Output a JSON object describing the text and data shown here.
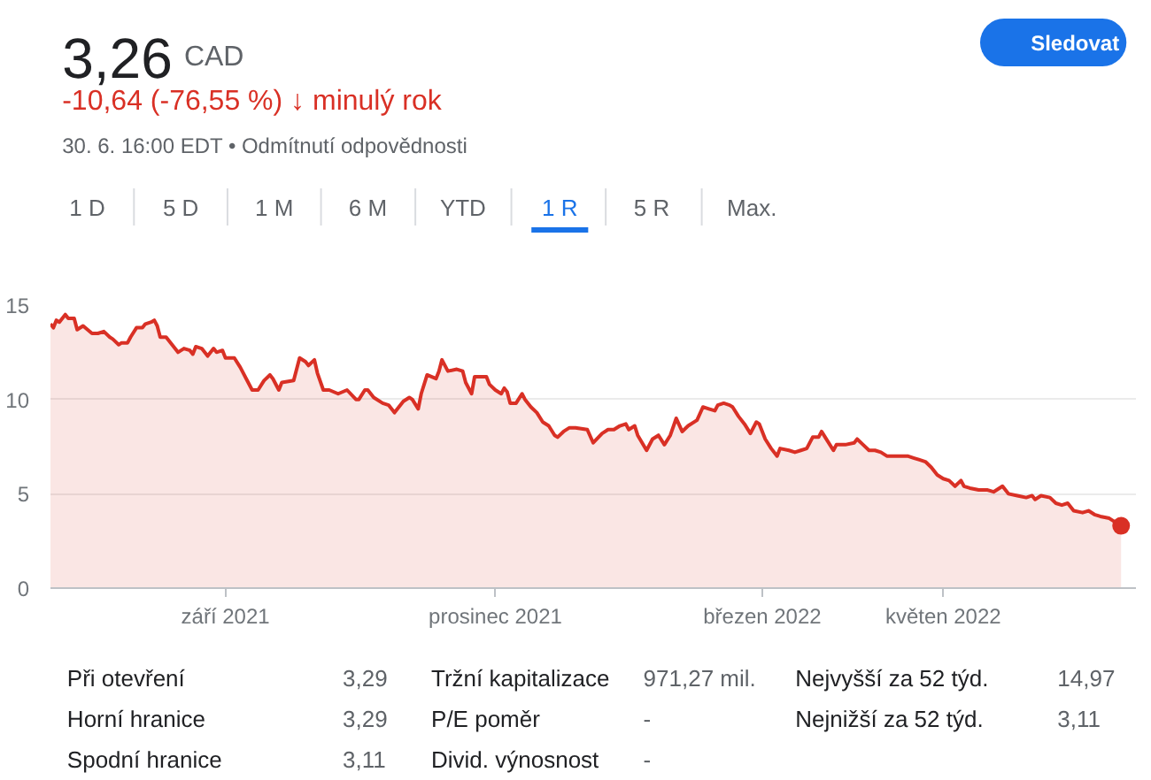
{
  "chart_data": {
    "type": "area",
    "title": "3,26",
    "subtitle": "-10,64 (-76,55 %) ↓ minulý rok",
    "annotations": [
      "CAD",
      "30. 6. 16:00 EDT • Odmítnutí odpovědnosti",
      "Sledovat",
      "1 D",
      "5 D",
      "1 M",
      "6 M",
      "YTD",
      "1 R",
      "5 R",
      "Max.",
      "Při otevření",
      "3,29",
      "Tržní kapitalizace",
      "971,27 mil.",
      "Nejvyšší za 52 týd.",
      "14,97",
      "Horní hranice",
      "3,29",
      "P/E poměr",
      "-",
      "Nejnižší za 52 týd.",
      "3,11",
      "Spodní hranice",
      "3,11",
      "Divid. výnosnost",
      "-"
    ],
    "x": [
      "2021-07-04",
      "2021-07-05",
      "2021-07-06",
      "2021-07-07",
      "2021-07-09",
      "2021-07-10",
      "2021-07-12",
      "2021-07-13",
      "2021-07-15",
      "2021-07-18",
      "2021-07-20",
      "2021-07-22",
      "2021-07-24",
      "2021-07-25",
      "2021-07-27",
      "2021-07-28",
      "2021-07-30",
      "2021-07-31",
      "2021-08-02",
      "2021-08-04",
      "2021-08-05",
      "2021-08-07",
      "2021-08-08",
      "2021-08-09",
      "2021-08-10",
      "2021-08-12",
      "2021-08-14",
      "2021-08-16",
      "2021-08-18",
      "2021-08-20",
      "2021-08-21",
      "2021-08-22",
      "2021-08-24",
      "2021-08-26",
      "2021-08-28",
      "2021-08-29",
      "2021-08-31",
      "2021-09-01",
      "2021-09-04",
      "2021-09-06",
      "2021-09-08",
      "2021-09-10",
      "2021-09-12",
      "2021-09-14",
      "2021-09-16",
      "2021-09-17",
      "2021-09-19",
      "2021-09-20",
      "2021-09-24",
      "2021-09-26",
      "2021-09-28",
      "2021-09-29",
      "2021-10-01",
      "2021-10-02",
      "2021-10-04",
      "2021-10-06",
      "2021-10-09",
      "2021-10-12",
      "2021-10-15",
      "2021-10-16",
      "2021-10-18",
      "2021-10-19",
      "2021-10-21",
      "2021-10-24",
      "2021-10-26",
      "2021-10-28",
      "2021-10-30",
      "2021-10-31",
      "2021-11-02",
      "2021-11-03",
      "2021-11-05",
      "2021-11-06",
      "2021-11-08",
      "2021-11-11",
      "2021-11-12",
      "2021-11-13",
      "2021-11-15",
      "2021-11-18",
      "2021-11-20",
      "2021-11-21",
      "2021-11-23",
      "2021-11-24",
      "2021-11-28",
      "2021-11-29",
      "2021-12-01",
      "2021-12-03",
      "2021-12-04",
      "2021-12-05",
      "2021-12-06",
      "2021-12-08",
      "2021-12-10",
      "2021-12-11",
      "2021-12-13",
      "2021-12-15",
      "2021-12-17",
      "2021-12-19",
      "2021-12-21",
      "2021-12-22",
      "2021-12-24",
      "2021-12-26",
      "2021-12-28",
      "2022-01-01",
      "2022-01-03",
      "2022-01-06",
      "2022-01-08",
      "2022-01-10",
      "2022-01-12",
      "2022-01-14",
      "2022-01-15",
      "2022-01-17",
      "2022-01-18",
      "2022-01-21",
      "2022-01-23",
      "2022-01-25",
      "2022-01-27",
      "2022-01-29",
      "2022-01-31",
      "2022-02-02",
      "2022-02-04",
      "2022-02-07",
      "2022-02-09",
      "2022-02-11",
      "2022-02-13",
      "2022-02-14",
      "2022-02-16",
      "2022-02-18",
      "2022-02-19",
      "2022-02-21",
      "2022-02-23",
      "2022-02-25",
      "2022-02-27",
      "2022-02-28",
      "2022-03-02",
      "2022-03-04",
      "2022-03-06",
      "2022-03-07",
      "2022-03-10",
      "2022-03-12",
      "2022-03-14",
      "2022-03-16",
      "2022-03-18",
      "2022-03-20",
      "2022-03-21",
      "2022-03-23",
      "2022-03-25",
      "2022-03-26",
      "2022-03-29",
      "2022-04-01",
      "2022-04-02",
      "2022-04-04",
      "2022-04-06",
      "2022-04-08",
      "2022-04-10",
      "2022-04-12",
      "2022-04-14",
      "2022-04-17",
      "2022-04-19",
      "2022-04-21",
      "2022-04-23",
      "2022-04-25",
      "2022-04-27",
      "2022-04-29",
      "2022-05-01",
      "2022-05-03",
      "2022-05-05",
      "2022-05-07",
      "2022-05-08",
      "2022-05-10",
      "2022-05-13",
      "2022-05-16",
      "2022-05-18",
      "2022-05-21",
      "2022-05-23",
      "2022-05-26",
      "2022-05-29",
      "2022-05-31",
      "2022-06-01",
      "2022-06-03",
      "2022-06-06",
      "2022-06-08",
      "2022-06-10",
      "2022-06-12",
      "2022-06-14",
      "2022-06-17",
      "2022-06-19",
      "2022-06-21",
      "2022-06-23",
      "2022-06-26",
      "2022-06-28",
      "2022-06-30"
    ],
    "series": [
      {
        "color": "#d93025",
        "values": [
          14.0,
          13.8,
          14.2,
          14.1,
          14.5,
          14.3,
          14.3,
          13.7,
          13.9,
          13.5,
          13.5,
          13.6,
          13.3,
          13.2,
          12.9,
          13.0,
          13.0,
          13.3,
          13.8,
          13.8,
          14.0,
          14.1,
          14.2,
          13.9,
          13.3,
          13.3,
          12.9,
          12.5,
          12.7,
          12.6,
          12.4,
          12.8,
          12.7,
          12.3,
          12.7,
          12.5,
          12.6,
          12.2,
          12.2,
          11.7,
          11.1,
          10.5,
          10.5,
          11.0,
          11.3,
          11.1,
          10.5,
          10.9,
          11.0,
          12.2,
          12.0,
          11.8,
          12.1,
          11.4,
          10.5,
          10.5,
          10.3,
          10.5,
          10.0,
          10.0,
          10.5,
          10.5,
          10.1,
          9.8,
          9.7,
          9.3,
          9.7,
          9.9,
          10.1,
          10.0,
          9.5,
          10.3,
          11.3,
          11.1,
          11.5,
          12.1,
          11.5,
          11.6,
          11.5,
          10.9,
          10.3,
          11.2,
          11.2,
          10.8,
          10.5,
          10.3,
          10.6,
          10.4,
          9.8,
          9.8,
          10.3,
          10.0,
          9.6,
          9.3,
          8.8,
          8.6,
          8.1,
          8.0,
          8.3,
          8.5,
          8.5,
          8.4,
          7.7,
          8.2,
          8.4,
          8.4,
          8.6,
          8.7,
          8.4,
          8.6,
          8.1,
          7.3,
          7.9,
          8.1,
          7.6,
          8.1,
          9.0,
          8.3,
          8.6,
          8.9,
          9.6,
          9.5,
          9.4,
          9.7,
          9.8,
          9.7,
          9.6,
          9.1,
          8.7,
          8.2,
          8.8,
          8.7,
          7.9,
          7.4,
          7.0,
          7.4,
          7.3,
          7.2,
          7.3,
          7.4,
          8.0,
          8.0,
          8.3,
          7.8,
          7.3,
          7.6,
          7.6,
          7.7,
          7.9,
          7.6,
          7.3,
          7.3,
          7.2,
          7.0,
          7.0,
          7.0,
          7.0,
          6.9,
          6.8,
          6.7,
          6.4,
          6.0,
          5.8,
          5.7,
          5.4,
          5.7,
          5.4,
          5.3,
          5.2,
          5.2,
          5.1,
          5.4,
          5.0,
          4.9,
          4.8,
          4.9,
          4.7,
          4.9,
          4.8,
          4.5,
          4.4,
          4.5,
          4.1,
          4.0,
          4.1,
          3.9,
          3.8,
          3.7,
          3.5,
          3.3
        ]
      },
      {
        "type": "scatter",
        "color": "#d93025",
        "marker": "circle",
        "x": [
          "2022-06-30"
        ],
        "values": [
          3.3
        ]
      }
    ],
    "xlim": [
      "2021-07-04",
      "2022-07-05"
    ],
    "xticks": [
      {
        "value": "2021-09-01",
        "label": "září 2021"
      },
      {
        "value": "2021-12-01",
        "label": "prosinec 2021"
      },
      {
        "value": "2022-03-01",
        "label": "březen 2022"
      },
      {
        "value": "2022-05-01",
        "label": "květen 2022"
      }
    ],
    "ylim": [
      0,
      15
    ],
    "yticks": [
      0,
      5,
      10,
      15
    ],
    "grid": "y"
  }
}
